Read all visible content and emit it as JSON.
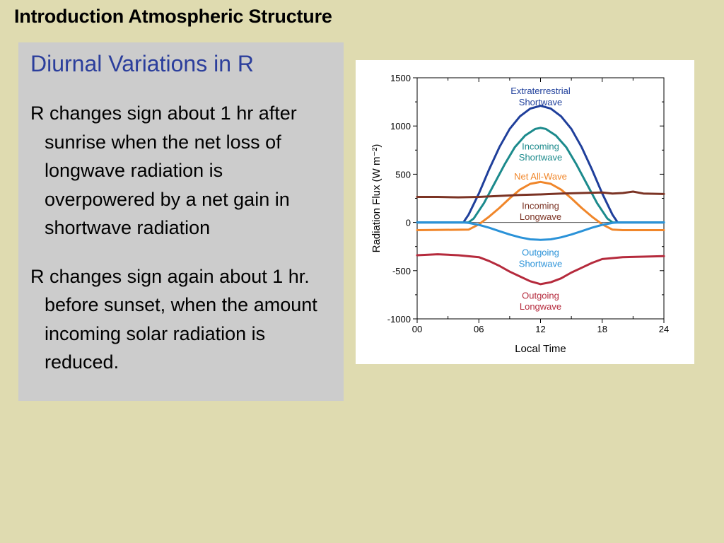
{
  "slide": {
    "title": "Introduction Atmospheric Structure"
  },
  "panel": {
    "heading": "Diurnal Variations in R",
    "paragraphs": [
      "R changes sign about 1 hr after sunrise when the net loss of longwave radiation is overpowered by a net gain in shortwave radiation",
      "R changes sign again about 1 hr. before sunset, when the amount incoming solar radiation is reduced."
    ]
  },
  "chart_data": {
    "type": "line",
    "xlabel": "Local Time",
    "ylabel": "Radiation Flux (W m⁻²)",
    "xlim": [
      0,
      24
    ],
    "ylim": [
      -1000,
      1500
    ],
    "x_tick_labels": [
      "00",
      "06",
      "12",
      "18",
      "24"
    ],
    "y_tick_labels": [
      "1500",
      "1000",
      "500",
      "0",
      "-500",
      "-1000"
    ],
    "series": [
      {
        "name": "Extraterrestrial Shortwave",
        "color": "#1f3f9b",
        "x": [
          0,
          4.5,
          5,
          6,
          7,
          8,
          9,
          10,
          11,
          12,
          13,
          14,
          15,
          16,
          17,
          18,
          19,
          19.5,
          24
        ],
        "values": [
          0,
          0,
          80,
          300,
          550,
          780,
          970,
          1100,
          1180,
          1210,
          1180,
          1100,
          970,
          780,
          550,
          300,
          80,
          0,
          0
        ]
      },
      {
        "name": "Incoming Shortwave",
        "color": "#1b8a8c",
        "x": [
          0,
          5,
          5.5,
          6.5,
          7.5,
          8.5,
          9.5,
          10.5,
          11.5,
          12,
          12.5,
          13.5,
          14.5,
          15.5,
          16.5,
          17.5,
          18.5,
          19,
          24
        ],
        "values": [
          0,
          0,
          40,
          200,
          400,
          600,
          780,
          900,
          970,
          980,
          970,
          900,
          780,
          600,
          400,
          200,
          40,
          0,
          0
        ]
      },
      {
        "name": "Net All-Wave",
        "color": "#f0862a",
        "x": [
          0,
          5,
          6,
          7,
          8,
          9,
          10,
          11,
          12,
          13,
          14,
          15,
          16,
          17,
          18,
          19,
          20,
          24
        ],
        "values": [
          -80,
          -75,
          -20,
          60,
          150,
          250,
          340,
          400,
          420,
          400,
          340,
          250,
          150,
          60,
          -20,
          -75,
          -80,
          -80
        ]
      },
      {
        "name": "Incoming Longwave",
        "color": "#7b3324",
        "x": [
          0,
          2,
          4,
          6,
          8,
          10,
          12,
          14,
          16,
          18,
          19,
          20,
          21,
          22,
          24
        ],
        "values": [
          265,
          265,
          260,
          265,
          275,
          285,
          290,
          300,
          305,
          310,
          300,
          305,
          320,
          300,
          295
        ]
      },
      {
        "name": "Outgoing Shortwave",
        "color": "#2a92d8",
        "x": [
          0,
          4.5,
          5,
          6,
          7,
          8,
          9,
          10,
          11,
          12,
          13,
          14,
          15,
          16,
          17,
          18,
          19,
          19.5,
          24
        ],
        "values": [
          0,
          0,
          -5,
          -25,
          -55,
          -90,
          -125,
          -155,
          -175,
          -180,
          -175,
          -155,
          -125,
          -90,
          -55,
          -25,
          -5,
          0,
          0
        ]
      },
      {
        "name": "Outgoing Longwave",
        "color": "#b52a3c",
        "x": [
          0,
          2,
          4,
          6,
          7,
          8,
          9,
          10,
          11,
          12,
          13,
          14,
          15,
          16,
          17,
          18,
          20,
          22,
          24
        ],
        "values": [
          -340,
          -330,
          -340,
          -360,
          -400,
          -450,
          -510,
          -560,
          -610,
          -640,
          -620,
          -580,
          -520,
          -470,
          -420,
          -380,
          -360,
          -355,
          -350
        ]
      }
    ],
    "baseline_at": 0,
    "grid": false
  }
}
